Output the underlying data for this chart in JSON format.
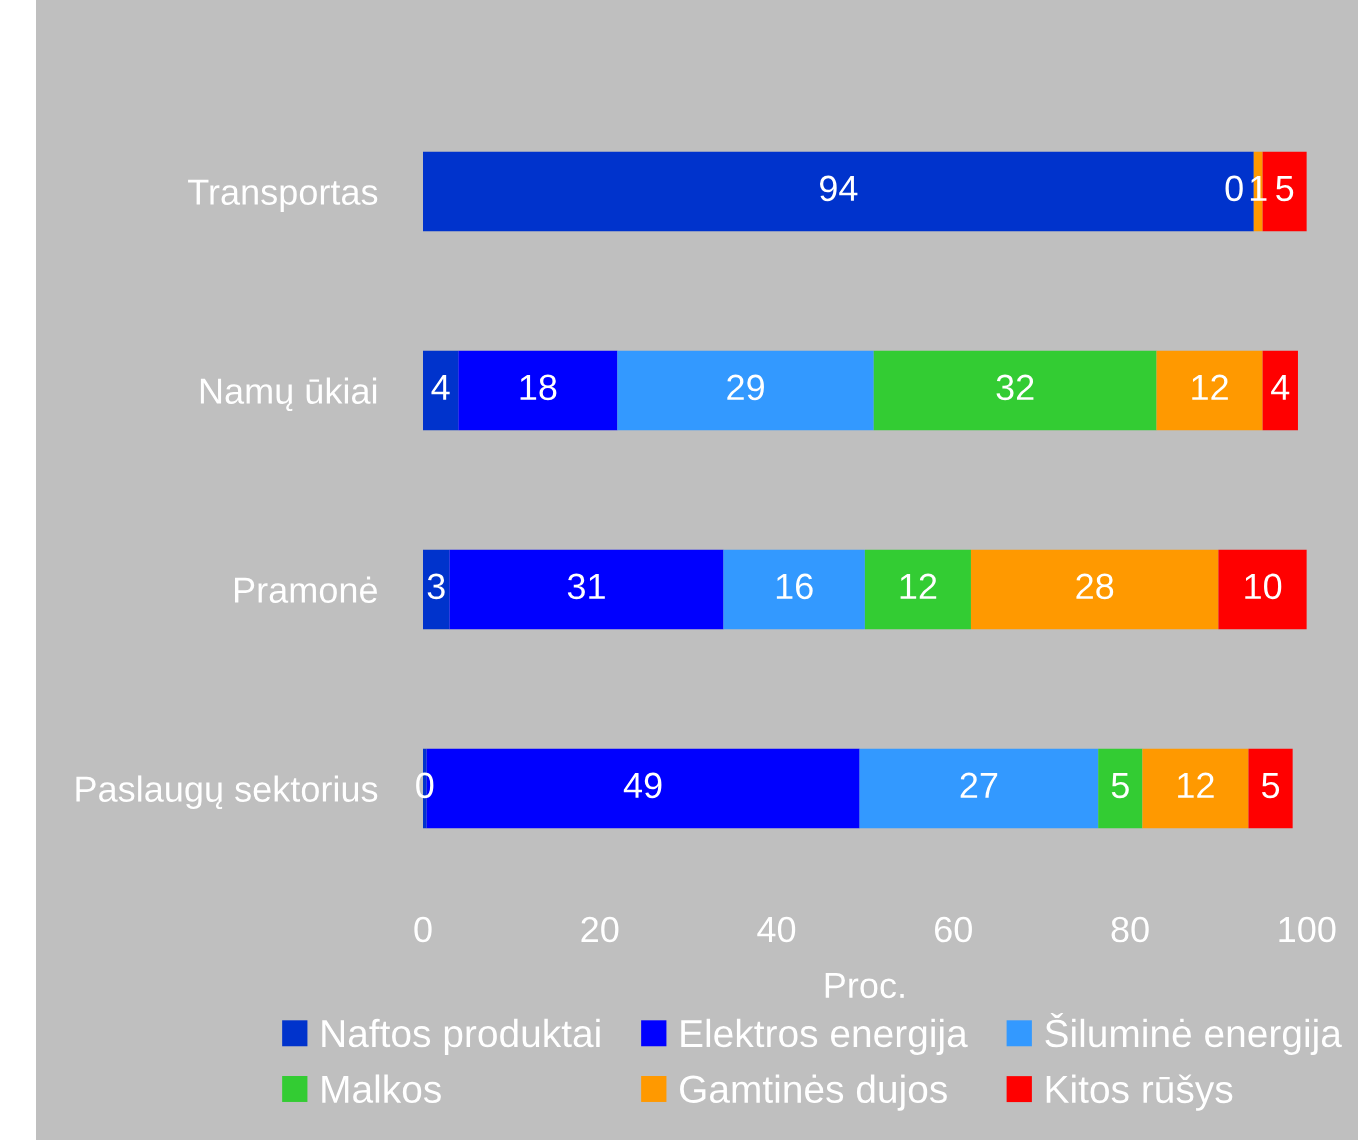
{
  "chart_data": {
    "type": "bar",
    "orientation": "horizontal",
    "stacked": true,
    "xlabel": "Proc.",
    "categories": [
      "Transportas",
      "Namų ūkiai",
      "Pramonė",
      "Paslaugų sektorius"
    ],
    "series": [
      {
        "name": "Naftos produktai",
        "color": "#0033cc",
        "values": [
          94,
          4,
          3,
          0.4
        ],
        "value_labels": [
          "94",
          "4",
          "3",
          "0"
        ]
      },
      {
        "name": "Elektros energija",
        "color": "#0000ff",
        "values": [
          0,
          18,
          31,
          49
        ],
        "value_labels": [
          "0",
          "18",
          "31",
          "49"
        ]
      },
      {
        "name": "Šiluminė energija",
        "color": "#3399ff",
        "values": [
          null,
          29,
          16,
          27
        ],
        "value_labels": [
          null,
          "29",
          "16",
          "27"
        ]
      },
      {
        "name": "Malkos",
        "color": "#33cc33",
        "values": [
          null,
          32,
          12,
          5
        ],
        "value_labels": [
          null,
          "32",
          "12",
          "5"
        ]
      },
      {
        "name": "Gamtinės dujos",
        "color": "#ff9900",
        "values": [
          1,
          12,
          28,
          12
        ],
        "value_labels": [
          "1",
          "12",
          "28",
          "12"
        ]
      },
      {
        "name": "Kitos rūšys",
        "color": "#ff0000",
        "values": [
          5,
          4,
          10,
          5
        ],
        "value_labels": [
          "5",
          "4",
          "10",
          "5"
        ]
      }
    ],
    "xlim": [
      0,
      100
    ],
    "xticks": [
      0,
      20,
      40,
      60,
      80,
      100
    ],
    "grid": false,
    "legend": "bottom"
  }
}
